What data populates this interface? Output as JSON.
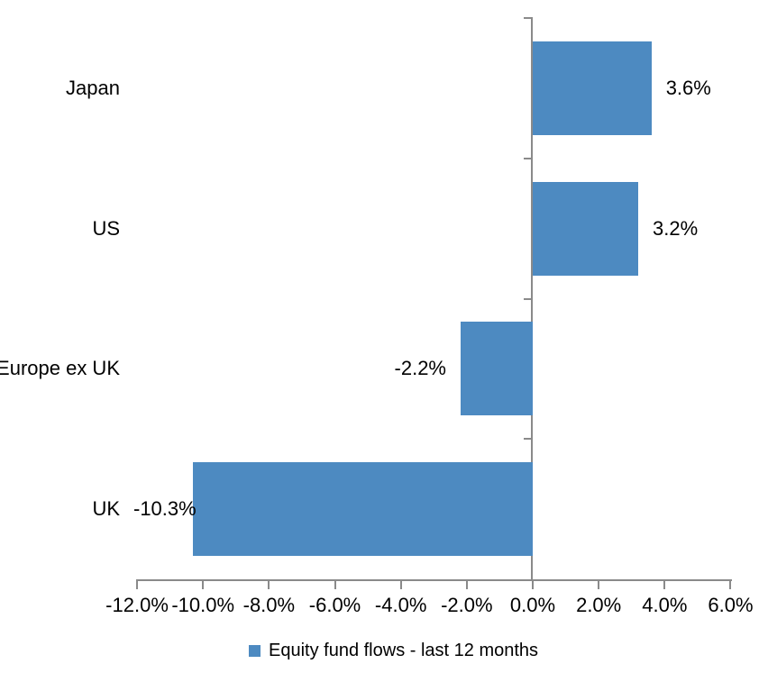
{
  "chart_data": {
    "type": "bar",
    "orientation": "horizontal",
    "categories": [
      "Japan",
      "US",
      "Europe ex UK",
      "UK"
    ],
    "values": [
      3.6,
      3.2,
      -2.2,
      -10.3
    ],
    "data_labels": [
      "3.6%",
      "3.2%",
      "-2.2%",
      "-10.3%"
    ],
    "x_ticks": [
      -12,
      -10,
      -8,
      -6,
      -4,
      -2,
      0,
      2,
      4,
      6
    ],
    "x_tick_labels": [
      "-12.0%",
      "-10.0%",
      "-8.0%",
      "-6.0%",
      "-4.0%",
      "-2.0%",
      "0.0%",
      "2.0%",
      "4.0%",
      "6.0%"
    ],
    "xlim": [
      -12,
      6
    ],
    "grid": false,
    "bar_color": "#4d8ac1",
    "axis_color": "#8a8a8a",
    "legend": {
      "position": "bottom",
      "entries": [
        {
          "label": "Equity fund flows - last 12 months",
          "color": "#4d8ac1"
        }
      ]
    }
  }
}
